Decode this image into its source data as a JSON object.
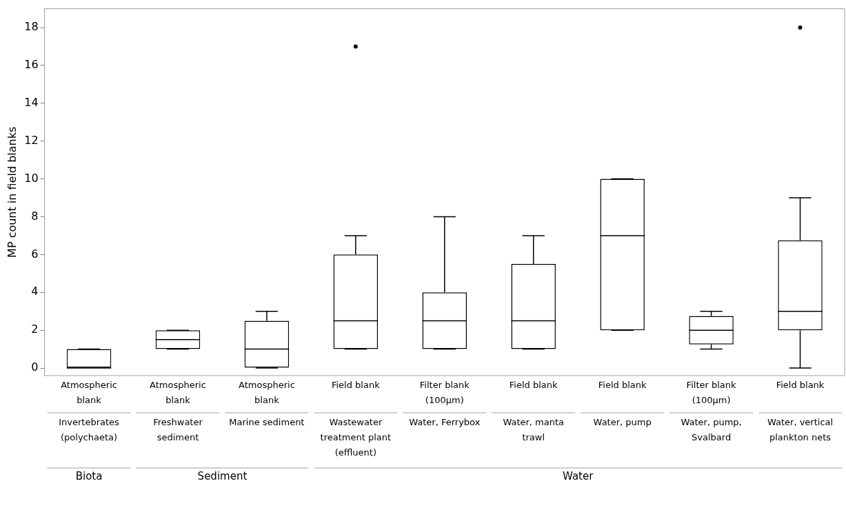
{
  "chart_data": {
    "type": "box",
    "ylabel": "MP count in field blanks",
    "categories": [
      "Atmospheric blank",
      "Atmospheric blank",
      "Atmospheric blank",
      "Field blank",
      "Filter blank (100µm)",
      "Field blank",
      "Field blank",
      "Filter blank (100µm)",
      "Field blank"
    ],
    "boxes": [
      {
        "low": 0,
        "q1": 0,
        "median": 0,
        "q3": 1,
        "high": 1
      },
      {
        "low": 1,
        "q1": 1,
        "median": 1.5,
        "q3": 2,
        "high": 2
      },
      {
        "low": 0,
        "q1": 0,
        "median": 1,
        "q3": 2.5,
        "high": 3
      },
      {
        "low": 1,
        "q1": 1,
        "median": 2.5,
        "q3": 6,
        "high": 7,
        "outliers": [
          17
        ]
      },
      {
        "low": 1,
        "q1": 1,
        "median": 2.5,
        "q3": 4,
        "high": 8
      },
      {
        "low": 1,
        "q1": 1,
        "median": 2.5,
        "q3": 5.5,
        "high": 7
      },
      {
        "low": 2,
        "q1": 2,
        "median": 7,
        "q3": 10,
        "high": 10
      },
      {
        "low": 1,
        "q1": 1.25,
        "median": 2,
        "q3": 2.75,
        "high": 3
      },
      {
        "low": 0,
        "q1": 2,
        "median": 3,
        "q3": 6.75,
        "high": 9,
        "outliers": [
          18
        ]
      }
    ],
    "color": "#000000",
    "ylim": [
      -0.4,
      19
    ],
    "yticks": [
      0,
      2,
      4,
      6,
      8,
      10,
      12,
      14,
      16,
      18
    ],
    "annotations": [
      "Invertebrates (polychaeta)",
      "Freshwater sediment",
      "Marine sediment",
      "Wastewater treatment plant (effluent)",
      "Water, Ferrybox",
      "Water, manta trawl",
      "Water, pump",
      "Water, pump, Svalbard",
      "Water, vertical plankton nets",
      "Biota",
      "Sediment",
      "Water"
    ]
  }
}
